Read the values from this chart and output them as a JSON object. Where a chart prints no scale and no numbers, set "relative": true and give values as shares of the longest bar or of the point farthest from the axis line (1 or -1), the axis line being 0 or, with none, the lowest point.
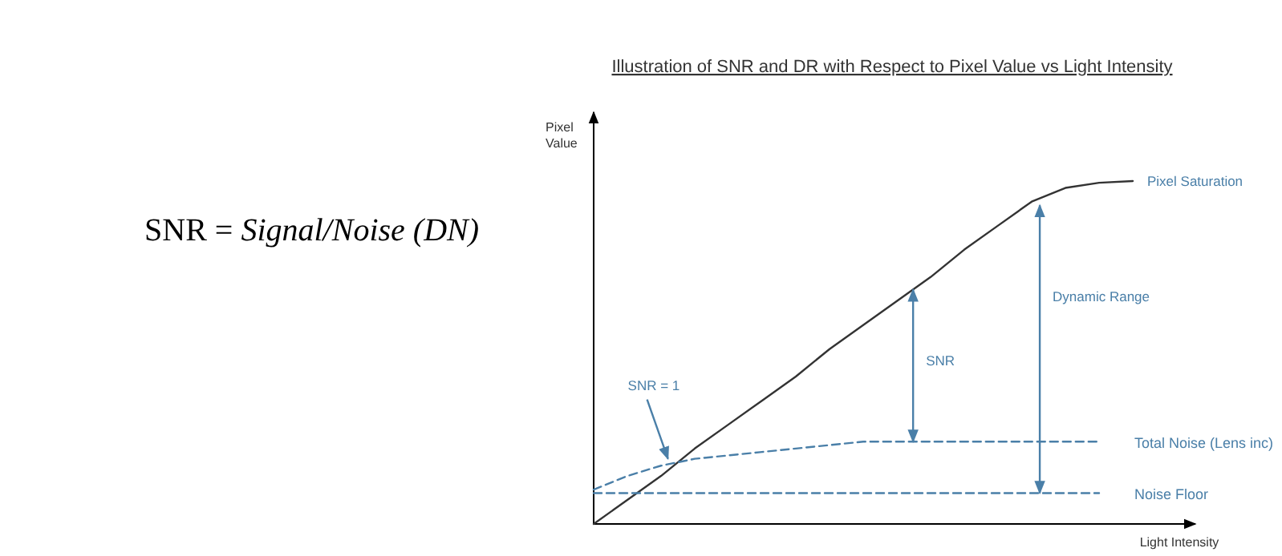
{
  "chart_data": {
    "type": "line",
    "title": "Illustration of SNR and DR with Respect to Pixel Value vs Light Intensity",
    "xlabel": "Light Intensity",
    "ylabel": "Pixel Value",
    "relative": true,
    "marker": "none",
    "categories": [
      null,
      null,
      null,
      null,
      null,
      null,
      null,
      null,
      null,
      null,
      null,
      null,
      null,
      null,
      null,
      null,
      null
    ],
    "series": [
      {
        "color": "#333333",
        "line_style": "solid",
        "values": [
          0,
          0.07,
          0.14,
          0.22,
          0.29,
          0.36,
          0.43,
          0.51,
          0.58,
          0.65,
          0.72,
          0.8,
          0.87,
          0.94,
          0.98,
          0.995,
          1
        ]
      },
      {
        "name": "Total Noise (Lens inc)",
        "color": "#4a7fa8",
        "line_style": "dashed",
        "values": [
          0.1,
          0.14,
          0.17,
          0.19,
          0.2,
          0.21,
          0.22,
          0.23,
          0.24,
          0.24,
          0.24,
          0.24,
          0.24,
          0.24,
          0.24,
          0.24,
          null
        ]
      },
      {
        "name": "Noise Floor",
        "color": "#4a7fa8",
        "line_style": "dashed",
        "values": [
          0.09,
          0.09,
          0.09,
          0.09,
          0.09,
          0.09,
          0.09,
          0.09,
          0.09,
          0.09,
          0.09,
          0.09,
          0.09,
          0.09,
          0.09,
          0.09,
          null
        ]
      }
    ],
    "annotations": [
      "SNR = Signal/Noise (DN)",
      "SNR",
      "Dynamic Range",
      "SNR = 1",
      "Pixel Saturation"
    ]
  }
}
